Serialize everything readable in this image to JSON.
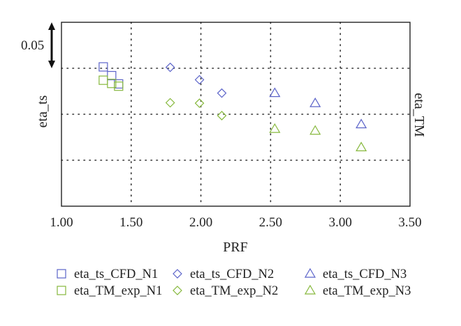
{
  "chart_data": {
    "type": "scatter",
    "xlabel": "PRF",
    "ylabel_left": "eta_ts",
    "ylabel_right": "eta_TM",
    "xlim": [
      1.0,
      3.5
    ],
    "x_ticks": [
      "1.00",
      "1.50",
      "2.00",
      "2.50",
      "3.00",
      "3.50"
    ],
    "ylim": [
      0.0,
      0.2
    ],
    "y_tick_labels": "none",
    "scale_bar_label": "0.05",
    "scale_bar_value": 0.05,
    "grid": true,
    "legend_position": "bottom",
    "series": [
      {
        "name": "eta_ts_CFD_N1",
        "marker": "square",
        "color": "#5b63c9",
        "points": [
          [
            1.3,
            0.1515
          ],
          [
            1.36,
            0.142
          ],
          [
            1.41,
            0.133
          ]
        ]
      },
      {
        "name": "eta_ts_CFD_N2",
        "marker": "diamond",
        "color": "#5b63c9",
        "points": [
          [
            1.78,
            0.151
          ],
          [
            1.99,
            0.1375
          ],
          [
            2.15,
            0.123
          ]
        ]
      },
      {
        "name": "eta_ts_CFD_N3",
        "marker": "triangle",
        "color": "#5b63c9",
        "points": [
          [
            2.53,
            0.123
          ],
          [
            2.82,
            0.112
          ],
          [
            3.15,
            0.089
          ]
        ]
      },
      {
        "name": "eta_TM_exp_N1",
        "marker": "square",
        "color": "#86b83c",
        "points": [
          [
            1.3,
            0.137
          ],
          [
            1.36,
            0.1335
          ],
          [
            1.41,
            0.1305
          ]
        ]
      },
      {
        "name": "eta_TM_exp_N2",
        "marker": "diamond",
        "color": "#86b83c",
        "points": [
          [
            1.78,
            0.1125
          ],
          [
            1.99,
            0.112
          ],
          [
            2.15,
            0.0985
          ]
        ]
      },
      {
        "name": "eta_TM_exp_N3",
        "marker": "triangle",
        "color": "#86b83c",
        "points": [
          [
            2.53,
            0.084
          ],
          [
            2.82,
            0.082
          ],
          [
            3.15,
            0.064
          ]
        ]
      }
    ]
  }
}
